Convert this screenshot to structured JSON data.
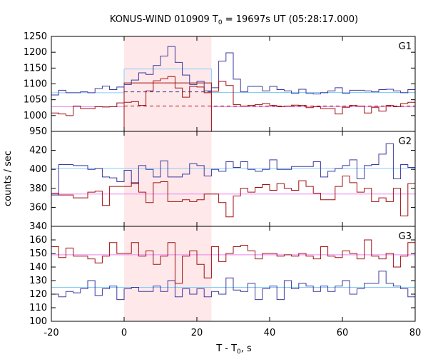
{
  "chart_data": {
    "type": "line",
    "title": "KONUS-WIND 010909 T",
    "title_sub": "0",
    "title_rest": " = 19697s UT (05:28:17.000)",
    "xlabel": "T - T",
    "xlabel_sub": "0",
    "xlabel_rest": ", s",
    "ylabel": "counts / sec",
    "xlim": [
      -20,
      80
    ],
    "xticks": [
      "-20",
      "0",
      "20",
      "40",
      "60",
      "80"
    ],
    "shaded_interval": [
      0,
      24
    ],
    "colors": {
      "blue": "#3a3aa0",
      "red": "#a01010",
      "cyan": "#87cefa",
      "pink": "#ee82ee",
      "shade": "#ffe8ea"
    },
    "panels": [
      {
        "label": "G1",
        "ylim": [
          950,
          1250
        ],
        "yticks": [
          "950",
          "1000",
          "1050",
          "1100",
          "1150",
          "1200",
          "1250"
        ],
        "bin_start": -20,
        "bin_width": 2,
        "series": [
          {
            "color": "blue",
            "values": [
              1065,
              1080,
              1072,
              1072,
              1075,
              1072,
              1085,
              1093,
              1082,
              1090,
              1098,
              1112,
              1135,
              1130,
              1158,
              1188,
              1218,
              1168,
              1128,
              1098,
              1108,
              1078,
              1088,
              1172,
              1198,
              1115,
              1075,
              1092,
              1092,
              1078,
              1092,
              1082,
              1078,
              1070,
              1083,
              1070,
              1068,
              1072,
              1078,
              1088,
              1070,
              1080,
              1080,
              1078,
              1075,
              1082,
              1083,
              1078,
              1072,
              1082
            ]
          },
          {
            "color": "red",
            "values": [
              1008,
              1005,
              1000,
              1030,
              1022,
              1022,
              1028,
              1027,
              1028,
              1040,
              1042,
              1044,
              1032,
              1078,
              1110,
              1116,
              1123,
              1087,
              1058,
              1092,
              1090,
              1072,
              1077,
              1108,
              1095,
              1035,
              1030,
              1032,
              1035,
              1038,
              1032,
              1028,
              1030,
              1033,
              1032,
              1025,
              1028,
              1022,
              1022,
              1005,
              1026,
              1032,
              1030,
              1008,
              1026,
              1014,
              1032,
              1028,
              1038,
              1042
            ]
          }
        ],
        "step_boxes": [
          {
            "color": "cyan",
            "x": [
              0,
              24
            ],
            "value": 1147
          },
          {
            "color": "red",
            "x": [
              0,
              24
            ],
            "value": 1103
          }
        ],
        "bg_lines": [
          {
            "color": "cyan",
            "x": [
              -20,
              0
            ],
            "value": 1072,
            "style": "solid"
          },
          {
            "color": "cyan",
            "x": [
              24,
              80
            ],
            "value": 1073,
            "style": "solid"
          },
          {
            "color": "pink",
            "x": [
              -20,
              0
            ],
            "value": 1028,
            "style": "solid"
          },
          {
            "color": "pink",
            "x": [
              24,
              80
            ],
            "value": 1028,
            "style": "solid"
          },
          {
            "color": "blue",
            "x": [
              0,
              24
            ],
            "value": 1075,
            "style": "dashed"
          },
          {
            "color": "red",
            "x": [
              0,
              80
            ],
            "value": 1030,
            "style": "dashed"
          }
        ]
      },
      {
        "label": "G2",
        "ylim": [
          340,
          440
        ],
        "yticks": [
          "340",
          "360",
          "380",
          "400",
          "420"
        ],
        "bin_start": -20,
        "bin_width": 2,
        "series": [
          {
            "color": "blue",
            "values": [
              373,
              405,
              405,
              404,
              404,
              400,
              401,
              392,
              391,
              387,
              399,
              385,
              404,
              400,
              392,
              409,
              392,
              392,
              395,
              406,
              404,
              393,
              400,
              398,
              408,
              402,
              408,
              400,
              398,
              400,
              410,
              400,
              400,
              403,
              403,
              403,
              408,
              392,
              398,
              401,
              404,
              410,
              390,
              404,
              405,
              416,
              427,
              390,
              405,
              402
            ]
          },
          {
            "color": "red",
            "values": [
              375,
              373,
              373,
              370,
              370,
              376,
              377,
              362,
              382,
              382,
              382,
              386,
              376,
              365,
              386,
              387,
              366,
              366,
              368,
              366,
              368,
              374,
              374,
              365,
              350,
              372,
              380,
              376,
              381,
              384,
              378,
              385,
              380,
              378,
              388,
              382,
              375,
              368,
              368,
              382,
              393,
              386,
              376,
              380,
              366,
              370,
              366,
              380,
              351,
              385
            ]
          }
        ],
        "bg_lines": [
          {
            "color": "cyan",
            "x": [
              -20,
              80
            ],
            "value": 401,
            "style": "solid"
          },
          {
            "color": "pink",
            "x": [
              -20,
              80
            ],
            "value": 374,
            "style": "solid"
          }
        ]
      },
      {
        "label": "G3",
        "ylim": [
          100,
          170
        ],
        "yticks": [
          "100",
          "110",
          "120",
          "130",
          "140",
          "150",
          "160"
        ],
        "bin_start": -20,
        "bin_width": 2,
        "series": [
          {
            "color": "blue",
            "values": [
              120,
              118,
              122,
              121,
              124,
              130,
              119,
              124,
              126,
              116,
              124,
              125,
              122,
              122,
              126,
              122,
              130,
              118,
              124,
              120,
              124,
              118,
              122,
              120,
              132,
              123,
              122,
              128,
              116,
              124,
              126,
              116,
              130,
              124,
              128,
              126,
              122,
              126,
              122,
              126,
              130,
              120,
              124,
              128,
              128,
              137,
              128,
              126,
              124,
              118
            ]
          },
          {
            "color": "red",
            "values": [
              155,
              147,
              154,
              148,
              148,
              146,
              143,
              148,
              158,
              150,
              150,
              158,
              148,
              152,
              142,
              148,
              158,
              128,
              148,
              152,
              142,
              132,
              155,
              144,
              150,
              155,
              156,
              152,
              146,
              150,
              150,
              148,
              149,
              148,
              150,
              148,
              146,
              155,
              148,
              147,
              152,
              150,
              146,
              160,
              148,
              146,
              150,
              140,
              148,
              158
            ]
          }
        ],
        "bg_lines": [
          {
            "color": "cyan",
            "x": [
              -20,
              80
            ],
            "value": 125,
            "style": "solid"
          },
          {
            "color": "pink",
            "x": [
              -20,
              80
            ],
            "value": 149,
            "style": "solid"
          }
        ]
      }
    ]
  }
}
